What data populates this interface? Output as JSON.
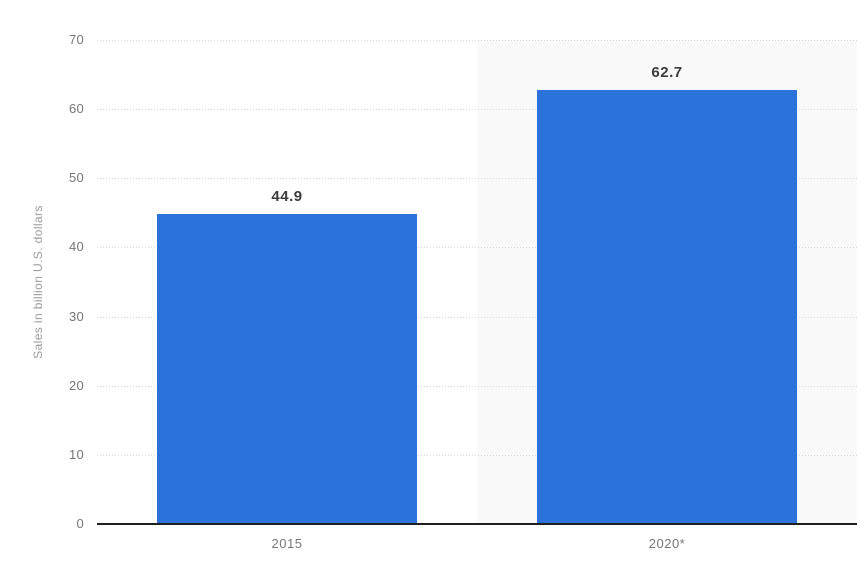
{
  "chart_data": {
    "type": "bar",
    "categories": [
      "2015",
      "2020*"
    ],
    "values": [
      44.9,
      62.7
    ],
    "value_labels": [
      "44.9",
      "62.7"
    ],
    "title": "",
    "xlabel": "",
    "ylabel": "Sales in billion U.S. dollars",
    "ylim": [
      0,
      70
    ],
    "yticks": [
      0,
      10,
      20,
      30,
      40,
      50,
      60,
      70
    ],
    "grid": "horizontal-dotted",
    "legend": "none",
    "highlighted_category_index": 1,
    "colors": {
      "bar": "#2C72DB",
      "highlight_band": "#f9f9f9",
      "gridline": "#d8d8d8",
      "axis_line": "#1f1f1f",
      "tick_text": "#767676",
      "axis_title_text": "#9b9b9b",
      "value_label_text": "#3c3c3c",
      "background": "#ffffff"
    }
  }
}
